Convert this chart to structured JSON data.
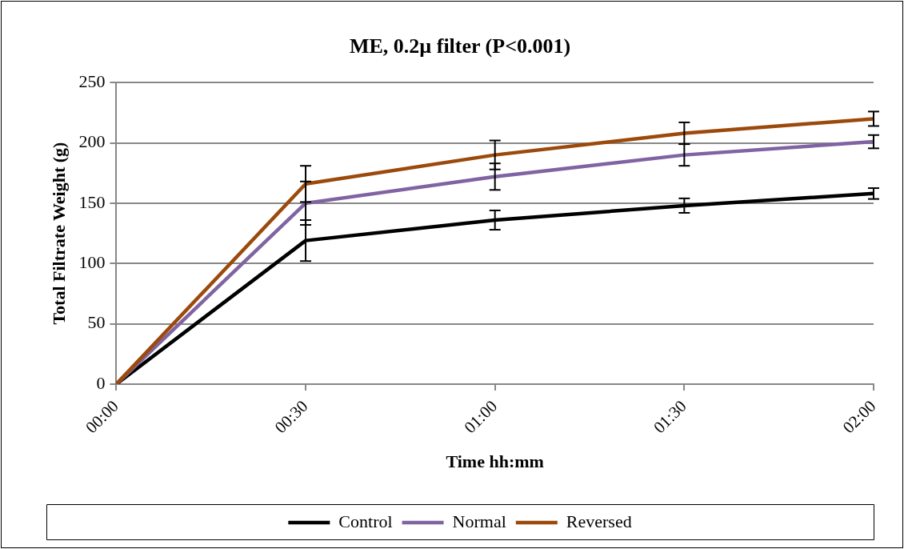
{
  "chart_data": {
    "type": "line",
    "title": "ME, 0.2µ filter (P<0.001)",
    "xlabel": "Time hh:mm",
    "ylabel": "Total Filtrate Weight (g)",
    "x": [
      0,
      0.5,
      1,
      1.5,
      2
    ],
    "xlim": [
      0,
      2
    ],
    "xticks": [
      {
        "value": 0,
        "label": "00:00"
      },
      {
        "value": 0.5,
        "label": "00:30"
      },
      {
        "value": 1,
        "label": "01:00"
      },
      {
        "value": 1.5,
        "label": "01:30"
      },
      {
        "value": 2,
        "label": "02:00"
      }
    ],
    "ylim": [
      0,
      250
    ],
    "yticks": [
      0,
      50,
      100,
      150,
      200,
      250
    ],
    "grid": "y",
    "legend": "bottom",
    "marker": "none",
    "line_style": "solid",
    "series": [
      {
        "name": "Control",
        "color": "#000000",
        "values": [
          0,
          119,
          136,
          148,
          158
        ],
        "errors": [
          null,
          17,
          8,
          6,
          4.5
        ]
      },
      {
        "name": "Normal",
        "color": "#8064a2",
        "values": [
          0,
          150,
          172,
          190,
          201
        ],
        "errors": [
          null,
          18,
          11,
          9,
          5.5
        ]
      },
      {
        "name": "Reversed",
        "color": "#9c4a0c",
        "values": [
          0,
          166,
          190,
          208,
          220
        ],
        "errors": [
          null,
          15,
          12,
          9,
          6
        ]
      }
    ]
  }
}
